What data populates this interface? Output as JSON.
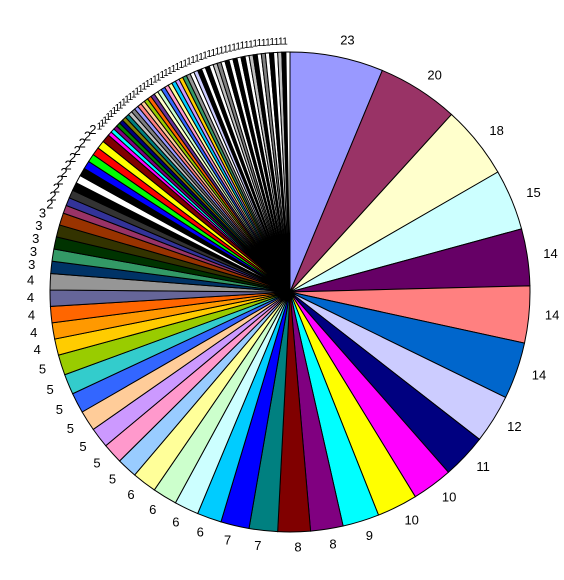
{
  "chart_data": {
    "type": "pie",
    "start": "top",
    "direction": "clockwise",
    "legend": "none",
    "slices": [
      {
        "value": 23,
        "label": "23",
        "color": "#9999ff"
      },
      {
        "value": 20,
        "label": "20",
        "color": "#993366"
      },
      {
        "value": 18,
        "label": "18",
        "color": "#ffffcc"
      },
      {
        "value": 15,
        "label": "15",
        "color": "#ccffff"
      },
      {
        "value": 14,
        "label": "14",
        "color": "#660066"
      },
      {
        "value": 14,
        "label": "14",
        "color": "#ff8080"
      },
      {
        "value": 14,
        "label": "14",
        "color": "#0066cc"
      },
      {
        "value": 12,
        "label": "12",
        "color": "#ccccff"
      },
      {
        "value": 11,
        "label": "11",
        "color": "#000080"
      },
      {
        "value": 10,
        "label": "10",
        "color": "#ff00ff"
      },
      {
        "value": 10,
        "label": "10",
        "color": "#ffff00"
      },
      {
        "value": 9,
        "label": "9",
        "color": "#00ffff"
      },
      {
        "value": 8,
        "label": "8",
        "color": "#800080"
      },
      {
        "value": 8,
        "label": "8",
        "color": "#800000"
      },
      {
        "value": 7,
        "label": "7",
        "color": "#008080"
      },
      {
        "value": 7,
        "label": "7",
        "color": "#0000ff"
      },
      {
        "value": 6,
        "label": "6",
        "color": "#00ccff"
      },
      {
        "value": 6,
        "label": "6",
        "color": "#ccffff"
      },
      {
        "value": 6,
        "label": "6",
        "color": "#ccffcc"
      },
      {
        "value": 6,
        "label": "6",
        "color": "#ffff99"
      },
      {
        "value": 5,
        "label": "5",
        "color": "#99ccff"
      },
      {
        "value": 5,
        "label": "5",
        "color": "#ff99cc"
      },
      {
        "value": 5,
        "label": "5",
        "color": "#cc99ff"
      },
      {
        "value": 5,
        "label": "5",
        "color": "#ffcc99"
      },
      {
        "value": 5,
        "label": "5",
        "color": "#3366ff"
      },
      {
        "value": 5,
        "label": "5",
        "color": "#33cccc"
      },
      {
        "value": 5,
        "label": "5",
        "color": "#99cc00"
      },
      {
        "value": 4,
        "label": "4",
        "color": "#ffcc00"
      },
      {
        "value": 4,
        "label": "4",
        "color": "#ff9900"
      },
      {
        "value": 4,
        "label": "4",
        "color": "#ff6600"
      },
      {
        "value": 4,
        "label": "4",
        "color": "#666699"
      },
      {
        "value": 4,
        "label": "4",
        "color": "#969696"
      },
      {
        "value": 3,
        "label": "3",
        "color": "#003366"
      },
      {
        "value": 3,
        "label": "3",
        "color": "#339966"
      },
      {
        "value": 3,
        "label": "3",
        "color": "#003300"
      },
      {
        "value": 3,
        "label": "3",
        "color": "#333300"
      },
      {
        "value": 3,
        "label": "3",
        "color": "#993300"
      },
      {
        "value": 2,
        "label": "2",
        "color": "#993366"
      },
      {
        "value": 2,
        "label": "2",
        "color": "#333399"
      },
      {
        "value": 2,
        "label": "2",
        "color": "#333333"
      },
      {
        "value": 2,
        "label": "2",
        "color": "#000000"
      },
      {
        "value": 2,
        "label": "2",
        "color": "#ffffff"
      },
      {
        "value": 2,
        "label": "2",
        "color": "#000000"
      },
      {
        "value": 2,
        "label": "2",
        "color": "#0000ff"
      },
      {
        "value": 2,
        "label": "2",
        "color": "#00ff00"
      },
      {
        "value": 2,
        "label": "2",
        "color": "#ff0000"
      },
      {
        "value": 2,
        "label": "2",
        "color": "#ffff00"
      },
      {
        "value": 2,
        "label": "2",
        "color": "#800000"
      },
      {
        "value": 1,
        "label": "1",
        "color": "#ff00ff"
      },
      {
        "value": 1,
        "label": "1",
        "color": "#00ffff"
      },
      {
        "value": 1,
        "label": "1",
        "color": "#800080"
      },
      {
        "value": 1,
        "label": "1",
        "color": "#008000"
      },
      {
        "value": 1,
        "label": "1",
        "color": "#000080"
      },
      {
        "value": 1,
        "label": "1",
        "color": "#808000"
      },
      {
        "value": 1,
        "label": "1",
        "color": "#008080"
      },
      {
        "value": 1,
        "label": "1",
        "color": "#c0c0c0"
      },
      {
        "value": 1,
        "label": "1",
        "color": "#808080"
      },
      {
        "value": 1,
        "label": "1",
        "color": "#9999ff"
      },
      {
        "value": 1,
        "label": "1",
        "color": "#ff8080"
      },
      {
        "value": 1,
        "label": "1",
        "color": "#ffcc99"
      },
      {
        "value": 1,
        "label": "1",
        "color": "#99cc00"
      },
      {
        "value": 1,
        "label": "1",
        "color": "#ff6600"
      },
      {
        "value": 1,
        "label": "1",
        "color": "#663399"
      },
      {
        "value": 1,
        "label": "1",
        "color": "#ffffcc"
      },
      {
        "value": 1,
        "label": "1",
        "color": "#ccffcc"
      },
      {
        "value": 1,
        "label": "1",
        "color": "#3366ff"
      },
      {
        "value": 1,
        "label": "1",
        "color": "#ff99cc"
      },
      {
        "value": 1,
        "label": "1",
        "color": "#ffff99"
      },
      {
        "value": 1,
        "label": "1",
        "color": "#00ccff"
      },
      {
        "value": 1,
        "label": "1",
        "color": "#cc99ff"
      },
      {
        "value": 1,
        "label": "1",
        "color": "#ffcc00"
      },
      {
        "value": 1,
        "label": "1",
        "color": "#339966"
      },
      {
        "value": 1,
        "label": "1",
        "color": "#969696"
      },
      {
        "value": 1,
        "label": "1",
        "color": "#ffffff"
      },
      {
        "value": 1,
        "label": "1",
        "color": "#ccccff"
      },
      {
        "value": 1,
        "label": "1",
        "color": "#000000"
      },
      {
        "value": 1,
        "label": "1",
        "color": "#ffffff"
      },
      {
        "value": 1,
        "label": "1",
        "color": "#000000"
      },
      {
        "value": 1,
        "label": "1",
        "color": "#ffffff"
      },
      {
        "value": 1,
        "label": "1",
        "color": "#c0c0c0"
      },
      {
        "value": 1,
        "label": "1",
        "color": "#808080"
      },
      {
        "value": 1,
        "label": "1",
        "color": "#ffffff"
      },
      {
        "value": 1,
        "label": "1",
        "color": "#000000"
      },
      {
        "value": 1,
        "label": "1",
        "color": "#ffffff"
      },
      {
        "value": 1,
        "label": "1",
        "color": "#000000"
      },
      {
        "value": 1,
        "label": "1",
        "color": "#ffffff"
      },
      {
        "value": 1,
        "label": "1",
        "color": "#000000"
      },
      {
        "value": 1,
        "label": "1",
        "color": "#ffffff"
      },
      {
        "value": 1,
        "label": "1",
        "color": "#c0c0c0"
      },
      {
        "value": 1,
        "label": "1",
        "color": "#000000"
      },
      {
        "value": 1,
        "label": "1",
        "color": "#ffffff"
      },
      {
        "value": 1,
        "label": "1",
        "color": "#808080"
      },
      {
        "value": 1,
        "label": "1",
        "color": "#ffffff"
      },
      {
        "value": 1,
        "label": "1",
        "color": "#000000"
      },
      {
        "value": 1,
        "label": "1",
        "color": "#ffffff"
      },
      {
        "value": 1,
        "label": "1",
        "color": "#c0c0c0"
      },
      {
        "value": 1,
        "label": "1",
        "color": "#000000"
      },
      {
        "value": 1,
        "label": "1",
        "color": "#ffffff"
      }
    ]
  }
}
